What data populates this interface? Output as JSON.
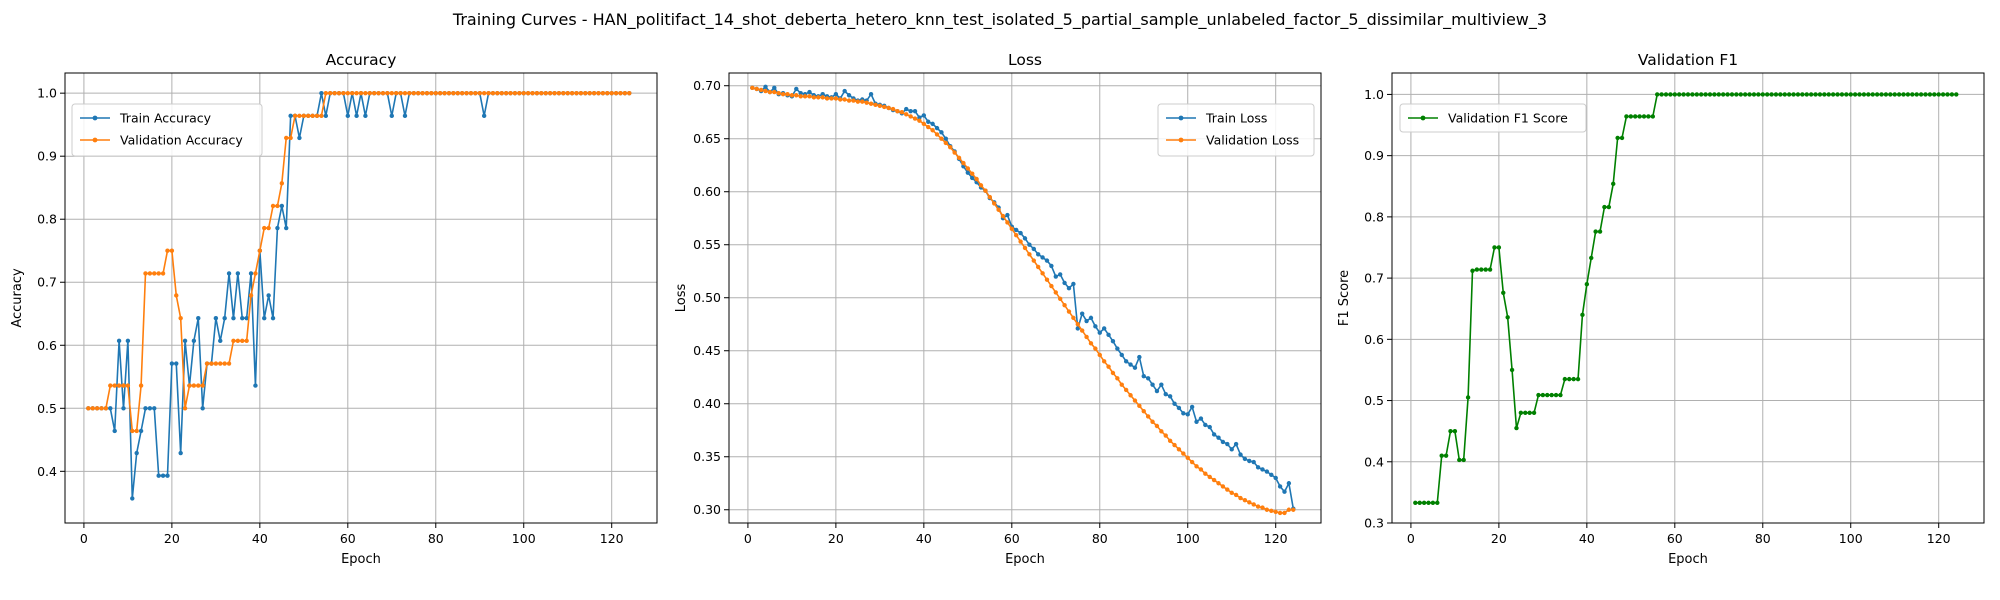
{
  "figure": {
    "title": "Training Curves - HAN_politifact_14_shot_deberta_hetero_knn_test_isolated_5_partial_sample_unlabeled_factor_5_dissimilar_multiview_3"
  },
  "chart_data": [
    {
      "type": "line",
      "title": "Accuracy",
      "xlabel": "Epoch",
      "ylabel": "Accuracy",
      "xlim": [
        -4.3,
        130.3
      ],
      "ylim": [
        0.318,
        1.032
      ],
      "xticks": [
        0,
        20,
        40,
        60,
        80,
        100,
        120
      ],
      "yticks": [
        0.4,
        0.5,
        0.6,
        0.7,
        0.8,
        0.9,
        1.0
      ],
      "ytick_labels": [
        "0.4",
        "0.5",
        "0.6",
        "0.7",
        "0.8",
        "0.9",
        "1.0"
      ],
      "grid": true,
      "legend_loc": "upper left",
      "x": [
        1,
        2,
        3,
        4,
        5,
        6,
        7,
        8,
        9,
        10,
        11,
        12,
        13,
        14,
        15,
        16,
        17,
        18,
        19,
        20,
        21,
        22,
        23,
        24,
        25,
        26,
        27,
        28,
        29,
        30,
        31,
        32,
        33,
        34,
        35,
        36,
        37,
        38,
        39,
        40,
        41,
        42,
        43,
        44,
        45,
        46,
        47,
        48,
        49,
        50,
        51,
        52,
        53,
        54,
        55,
        56,
        57,
        58,
        59,
        60,
        61,
        62,
        63,
        64,
        65,
        66,
        67,
        68,
        69,
        70,
        71,
        72,
        73,
        74,
        75,
        76,
        77,
        78,
        79,
        80,
        81,
        82,
        83,
        84,
        85,
        86,
        87,
        88,
        89,
        90,
        91,
        92,
        93,
        94,
        95,
        96,
        97,
        98,
        99,
        100,
        101,
        102,
        103,
        104,
        105,
        106,
        107,
        108,
        109,
        110,
        111,
        112,
        113,
        114,
        115,
        116,
        117,
        118,
        119,
        120,
        121,
        122,
        123,
        124
      ],
      "series": [
        {
          "name": "Train Accuracy",
          "color": "#1f77b4",
          "values": [
            0.5,
            0.5,
            0.5,
            0.5,
            0.5,
            0.5,
            0.464,
            0.607,
            0.5,
            0.607,
            0.357,
            0.429,
            0.464,
            0.5,
            0.5,
            0.5,
            0.393,
            0.393,
            0.393,
            0.571,
            0.571,
            0.429,
            0.607,
            0.536,
            0.607,
            0.643,
            0.5,
            0.571,
            0.571,
            0.643,
            0.607,
            0.643,
            0.714,
            0.643,
            0.714,
            0.643,
            0.643,
            0.714,
            0.536,
            0.75,
            0.643,
            0.679,
            0.643,
            0.786,
            0.821,
            0.786,
            0.964,
            0.964,
            0.929,
            0.964,
            0.964,
            0.964,
            0.964,
            1.0,
            0.964,
            1.0,
            1.0,
            1.0,
            1.0,
            0.964,
            1.0,
            0.964,
            1.0,
            0.964,
            1.0,
            1.0,
            1.0,
            1.0,
            1.0,
            0.964,
            1.0,
            1.0,
            0.964,
            1.0,
            1.0,
            1.0,
            1.0,
            1.0,
            1.0,
            1.0,
            1.0,
            1.0,
            1.0,
            1.0,
            1.0,
            1.0,
            1.0,
            1.0,
            1.0,
            1.0,
            0.964,
            1.0,
            1.0,
            1.0,
            1.0,
            1.0,
            1.0,
            1.0,
            1.0,
            1.0,
            1.0,
            1.0,
            1.0,
            1.0,
            1.0,
            1.0,
            1.0,
            1.0,
            1.0,
            1.0,
            1.0,
            1.0,
            1.0,
            1.0,
            1.0,
            1.0,
            1.0,
            1.0,
            1.0,
            1.0,
            1.0,
            1.0,
            1.0,
            1.0
          ]
        },
        {
          "name": "Validation Accuracy",
          "color": "#ff7f0e",
          "values": [
            0.5,
            0.5,
            0.5,
            0.5,
            0.5,
            0.536,
            0.536,
            0.536,
            0.536,
            0.536,
            0.464,
            0.464,
            0.536,
            0.714,
            0.714,
            0.714,
            0.714,
            0.714,
            0.75,
            0.75,
            0.679,
            0.643,
            0.5,
            0.536,
            0.536,
            0.536,
            0.536,
            0.571,
            0.571,
            0.571,
            0.571,
            0.571,
            0.571,
            0.607,
            0.607,
            0.607,
            0.607,
            0.679,
            0.714,
            0.75,
            0.786,
            0.786,
            0.821,
            0.821,
            0.857,
            0.929,
            0.929,
            0.964,
            0.964,
            0.964,
            0.964,
            0.964,
            0.964,
            0.964,
            1.0,
            1.0,
            1.0,
            1.0,
            1.0,
            1.0,
            1.0,
            1.0,
            1.0,
            1.0,
            1.0,
            1.0,
            1.0,
            1.0,
            1.0,
            1.0,
            1.0,
            1.0,
            1.0,
            1.0,
            1.0,
            1.0,
            1.0,
            1.0,
            1.0,
            1.0,
            1.0,
            1.0,
            1.0,
            1.0,
            1.0,
            1.0,
            1.0,
            1.0,
            1.0,
            1.0,
            1.0,
            1.0,
            1.0,
            1.0,
            1.0,
            1.0,
            1.0,
            1.0,
            1.0,
            1.0,
            1.0,
            1.0,
            1.0,
            1.0,
            1.0,
            1.0,
            1.0,
            1.0,
            1.0,
            1.0,
            1.0,
            1.0,
            1.0,
            1.0,
            1.0,
            1.0,
            1.0,
            1.0,
            1.0,
            1.0,
            1.0,
            1.0,
            1.0,
            1.0
          ]
        }
      ]
    },
    {
      "type": "line",
      "title": "Loss",
      "xlabel": "Epoch",
      "ylabel": "Loss",
      "xlim": [
        -4.3,
        130.3
      ],
      "ylim": [
        0.2875,
        0.712
      ],
      "xticks": [
        0,
        20,
        40,
        60,
        80,
        100,
        120
      ],
      "yticks": [
        0.3,
        0.35,
        0.4,
        0.45,
        0.5,
        0.55,
        0.6,
        0.65,
        0.7
      ],
      "ytick_labels": [
        "0.30",
        "0.35",
        "0.40",
        "0.45",
        "0.50",
        "0.55",
        "0.60",
        "0.65",
        "0.70"
      ],
      "grid": true,
      "legend_loc": "upper right",
      "x": [
        1,
        2,
        3,
        4,
        5,
        6,
        7,
        8,
        9,
        10,
        11,
        12,
        13,
        14,
        15,
        16,
        17,
        18,
        19,
        20,
        21,
        22,
        23,
        24,
        25,
        26,
        27,
        28,
        29,
        30,
        31,
        32,
        33,
        34,
        35,
        36,
        37,
        38,
        39,
        40,
        41,
        42,
        43,
        44,
        45,
        46,
        47,
        48,
        49,
        50,
        51,
        52,
        53,
        54,
        55,
        56,
        57,
        58,
        59,
        60,
        61,
        62,
        63,
        64,
        65,
        66,
        67,
        68,
        69,
        70,
        71,
        72,
        73,
        74,
        75,
        76,
        77,
        78,
        79,
        80,
        81,
        82,
        83,
        84,
        85,
        86,
        87,
        88,
        89,
        90,
        91,
        92,
        93,
        94,
        95,
        96,
        97,
        98,
        99,
        100,
        101,
        102,
        103,
        104,
        105,
        106,
        107,
        108,
        109,
        110,
        111,
        112,
        113,
        114,
        115,
        116,
        117,
        118,
        119,
        120,
        121,
        122,
        123,
        124
      ],
      "series": [
        {
          "name": "Train Loss",
          "color": "#1f77b4",
          "values": [
            0.698,
            0.697,
            0.695,
            0.699,
            0.694,
            0.698,
            0.692,
            0.693,
            0.691,
            0.69,
            0.697,
            0.693,
            0.692,
            0.694,
            0.691,
            0.69,
            0.692,
            0.69,
            0.689,
            0.692,
            0.688,
            0.695,
            0.691,
            0.688,
            0.686,
            0.687,
            0.686,
            0.692,
            0.683,
            0.682,
            0.681,
            0.679,
            0.677,
            0.676,
            0.674,
            0.678,
            0.676,
            0.676,
            0.67,
            0.672,
            0.666,
            0.664,
            0.66,
            0.656,
            0.65,
            0.643,
            0.638,
            0.631,
            0.624,
            0.618,
            0.613,
            0.609,
            0.604,
            0.601,
            0.594,
            0.59,
            0.585,
            0.575,
            0.578,
            0.567,
            0.564,
            0.561,
            0.556,
            0.55,
            0.546,
            0.541,
            0.538,
            0.535,
            0.53,
            0.52,
            0.522,
            0.514,
            0.509,
            0.513,
            0.471,
            0.485,
            0.478,
            0.481,
            0.473,
            0.467,
            0.471,
            0.465,
            0.459,
            0.452,
            0.446,
            0.44,
            0.437,
            0.434,
            0.444,
            0.426,
            0.424,
            0.418,
            0.412,
            0.418,
            0.409,
            0.407,
            0.4,
            0.396,
            0.391,
            0.39,
            0.397,
            0.383,
            0.386,
            0.38,
            0.378,
            0.371,
            0.368,
            0.364,
            0.362,
            0.357,
            0.362,
            0.352,
            0.348,
            0.346,
            0.345,
            0.34,
            0.338,
            0.336,
            0.333,
            0.33,
            0.322,
            0.317,
            0.325,
            0.301
          ]
        },
        {
          "name": "Validation Loss",
          "color": "#ff7f0e",
          "values": [
            0.698,
            0.697,
            0.696,
            0.695,
            0.694,
            0.694,
            0.693,
            0.692,
            0.692,
            0.691,
            0.691,
            0.69,
            0.69,
            0.69,
            0.689,
            0.689,
            0.689,
            0.688,
            0.688,
            0.688,
            0.687,
            0.687,
            0.686,
            0.686,
            0.685,
            0.685,
            0.684,
            0.683,
            0.682,
            0.681,
            0.68,
            0.679,
            0.678,
            0.676,
            0.675,
            0.673,
            0.671,
            0.669,
            0.667,
            0.664,
            0.661,
            0.658,
            0.654,
            0.65,
            0.646,
            0.642,
            0.637,
            0.632,
            0.627,
            0.622,
            0.617,
            0.612,
            0.606,
            0.601,
            0.595,
            0.589,
            0.583,
            0.577,
            0.571,
            0.565,
            0.559,
            0.553,
            0.547,
            0.541,
            0.535,
            0.529,
            0.523,
            0.517,
            0.511,
            0.505,
            0.499,
            0.493,
            0.487,
            0.481,
            0.475,
            0.469,
            0.463,
            0.457,
            0.452,
            0.446,
            0.44,
            0.435,
            0.429,
            0.424,
            0.418,
            0.413,
            0.408,
            0.403,
            0.398,
            0.393,
            0.388,
            0.383,
            0.379,
            0.374,
            0.37,
            0.365,
            0.361,
            0.357,
            0.353,
            0.349,
            0.345,
            0.341,
            0.338,
            0.334,
            0.331,
            0.328,
            0.325,
            0.322,
            0.319,
            0.316,
            0.314,
            0.311,
            0.309,
            0.307,
            0.305,
            0.303,
            0.302,
            0.3,
            0.299,
            0.298,
            0.297,
            0.297,
            0.3,
            0.3
          ]
        }
      ]
    },
    {
      "type": "line",
      "title": "Validation F1",
      "xlabel": "Epoch",
      "ylabel": "F1 Score",
      "xlim": [
        -4.3,
        130.3
      ],
      "ylim": [
        0.3,
        1.035
      ],
      "xticks": [
        0,
        20,
        40,
        60,
        80,
        100,
        120
      ],
      "yticks": [
        0.3,
        0.4,
        0.5,
        0.6,
        0.7,
        0.8,
        0.9,
        1.0
      ],
      "ytick_labels": [
        "0.3",
        "0.4",
        "0.5",
        "0.6",
        "0.7",
        "0.8",
        "0.9",
        "1.0"
      ],
      "grid": true,
      "legend_loc": "upper left",
      "x": [
        1,
        2,
        3,
        4,
        5,
        6,
        7,
        8,
        9,
        10,
        11,
        12,
        13,
        14,
        15,
        16,
        17,
        18,
        19,
        20,
        21,
        22,
        23,
        24,
        25,
        26,
        27,
        28,
        29,
        30,
        31,
        32,
        33,
        34,
        35,
        36,
        37,
        38,
        39,
        40,
        41,
        42,
        43,
        44,
        45,
        46,
        47,
        48,
        49,
        50,
        51,
        52,
        53,
        54,
        55,
        56,
        57,
        58,
        59,
        60,
        61,
        62,
        63,
        64,
        65,
        66,
        67,
        68,
        69,
        70,
        71,
        72,
        73,
        74,
        75,
        76,
        77,
        78,
        79,
        80,
        81,
        82,
        83,
        84,
        85,
        86,
        87,
        88,
        89,
        90,
        91,
        92,
        93,
        94,
        95,
        96,
        97,
        98,
        99,
        100,
        101,
        102,
        103,
        104,
        105,
        106,
        107,
        108,
        109,
        110,
        111,
        112,
        113,
        114,
        115,
        116,
        117,
        118,
        119,
        120,
        121,
        122,
        123,
        124
      ],
      "series": [
        {
          "name": "Validation F1 Score",
          "color": "#008000",
          "values": [
            0.333,
            0.333,
            0.333,
            0.333,
            0.333,
            0.333,
            0.41,
            0.41,
            0.45,
            0.45,
            0.403,
            0.403,
            0.505,
            0.712,
            0.714,
            0.714,
            0.714,
            0.714,
            0.75,
            0.75,
            0.676,
            0.636,
            0.55,
            0.455,
            0.48,
            0.48,
            0.48,
            0.48,
            0.509,
            0.509,
            0.509,
            0.509,
            0.509,
            0.509,
            0.535,
            0.535,
            0.535,
            0.535,
            0.64,
            0.69,
            0.733,
            0.776,
            0.776,
            0.816,
            0.816,
            0.854,
            0.929,
            0.929,
            0.964,
            0.964,
            0.964,
            0.964,
            0.964,
            0.964,
            0.964,
            1.0,
            1.0,
            1.0,
            1.0,
            1.0,
            1.0,
            1.0,
            1.0,
            1.0,
            1.0,
            1.0,
            1.0,
            1.0,
            1.0,
            1.0,
            1.0,
            1.0,
            1.0,
            1.0,
            1.0,
            1.0,
            1.0,
            1.0,
            1.0,
            1.0,
            1.0,
            1.0,
            1.0,
            1.0,
            1.0,
            1.0,
            1.0,
            1.0,
            1.0,
            1.0,
            1.0,
            1.0,
            1.0,
            1.0,
            1.0,
            1.0,
            1.0,
            1.0,
            1.0,
            1.0,
            1.0,
            1.0,
            1.0,
            1.0,
            1.0,
            1.0,
            1.0,
            1.0,
            1.0,
            1.0,
            1.0,
            1.0,
            1.0,
            1.0,
            1.0,
            1.0,
            1.0,
            1.0,
            1.0,
            1.0,
            1.0,
            1.0,
            1.0,
            1.0
          ]
        }
      ]
    }
  ]
}
